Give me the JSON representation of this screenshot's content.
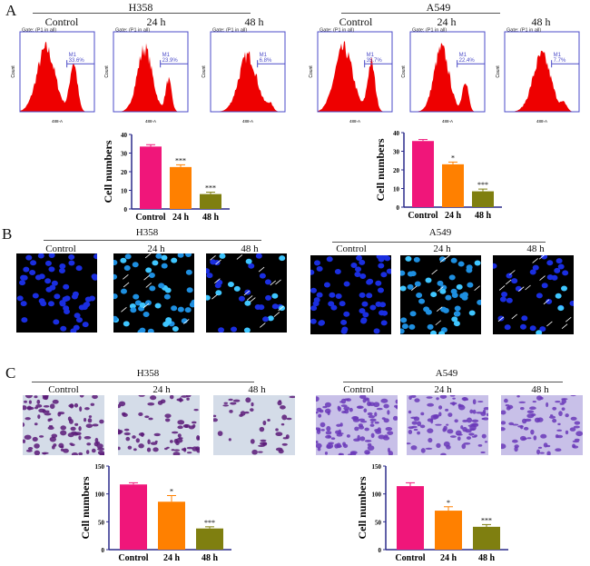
{
  "colors": {
    "control": "#f0167a",
    "h24": "#ff8000",
    "h48": "#7f7f10",
    "hist": "#ee0000",
    "hist_frame": "#4b4bc8",
    "axis": "#2a2a8a"
  },
  "panels": {
    "A": {
      "label": "A",
      "groups": [
        {
          "cell_line": "H358",
          "conditions": [
            "Control",
            "24 h",
            "48 h"
          ],
          "histograms": [
            {
              "gate": "Gate: (P1 in all)",
              "marker": "M1",
              "percent": "33.6%",
              "ylabel": "Count",
              "xlabel": "488-A"
            },
            {
              "gate": "Gate: (P1 in all)",
              "marker": "M1",
              "percent": "23.9%",
              "ylabel": "Count",
              "xlabel": "488-A"
            },
            {
              "gate": "Gate: (P1 in all)",
              "marker": "M1",
              "percent": "6.8%",
              "ylabel": "Count",
              "xlabel": "488-A"
            }
          ]
        },
        {
          "cell_line": "A549",
          "conditions": [
            "Control",
            "24 h",
            "48 h"
          ],
          "histograms": [
            {
              "gate": "Gate: (P1 in all)",
              "marker": "M1",
              "percent": "35.7%",
              "ylabel": "Count",
              "xlabel": "488-A"
            },
            {
              "gate": "Gate: (P1 in all)",
              "marker": "M1",
              "percent": "22.4%",
              "ylabel": "Count",
              "xlabel": "488-A"
            },
            {
              "gate": "Gate: (P1 in all)",
              "marker": "M1",
              "percent": "7.7%",
              "ylabel": "Count",
              "xlabel": "488-A"
            }
          ]
        }
      ]
    },
    "B": {
      "label": "B",
      "groups": [
        {
          "cell_line": "H358",
          "conditions": [
            "Control",
            "24 h",
            "48 h"
          ]
        },
        {
          "cell_line": "A549",
          "conditions": [
            "Control",
            "24 h",
            "48 h"
          ]
        }
      ]
    },
    "C": {
      "label": "C",
      "groups": [
        {
          "cell_line": "H358",
          "conditions": [
            "Control",
            "24 h",
            "48 h"
          ]
        },
        {
          "cell_line": "A549",
          "conditions": [
            "Control",
            "24 h",
            "48 h"
          ]
        }
      ]
    }
  },
  "chart_data": [
    {
      "id": "A-H358",
      "type": "bar",
      "categories": [
        "Control",
        "24 h",
        "48 h"
      ],
      "values": [
        33.5,
        22.5,
        8
      ],
      "errors": [
        1,
        1.2,
        1
      ],
      "significance": [
        "",
        "***",
        "***"
      ],
      "ylabel": "Cell numbers",
      "ylim": [
        0,
        40
      ],
      "yticks": [
        0,
        10,
        20,
        30,
        40
      ]
    },
    {
      "id": "A-A549",
      "type": "bar",
      "categories": [
        "Control",
        "24 h",
        "48 h"
      ],
      "values": [
        35.5,
        23,
        8.5
      ],
      "errors": [
        0.8,
        1.2,
        1.2
      ],
      "significance": [
        "",
        "*",
        "***"
      ],
      "ylabel": "Cell numbers",
      "ylim": [
        0,
        40
      ],
      "yticks": [
        0,
        10,
        20,
        30,
        40
      ]
    },
    {
      "id": "C-H358",
      "type": "bar",
      "categories": [
        "Control",
        "24 h",
        "48 h"
      ],
      "values": [
        117,
        86,
        38
      ],
      "errors": [
        3,
        11,
        3
      ],
      "significance": [
        "",
        "*",
        "***"
      ],
      "ylabel": "Cell numbers",
      "ylim": [
        0,
        150
      ],
      "yticks": [
        0,
        50,
        100,
        150
      ]
    },
    {
      "id": "C-A549",
      "type": "bar",
      "categories": [
        "Control",
        "24 h",
        "48 h"
      ],
      "values": [
        114,
        70,
        41
      ],
      "errors": [
        6,
        7,
        4
      ],
      "significance": [
        "",
        "*",
        "***"
      ],
      "ylabel": "Cell numbers",
      "ylim": [
        0,
        150
      ],
      "yticks": [
        0,
        50,
        100,
        150
      ]
    }
  ]
}
